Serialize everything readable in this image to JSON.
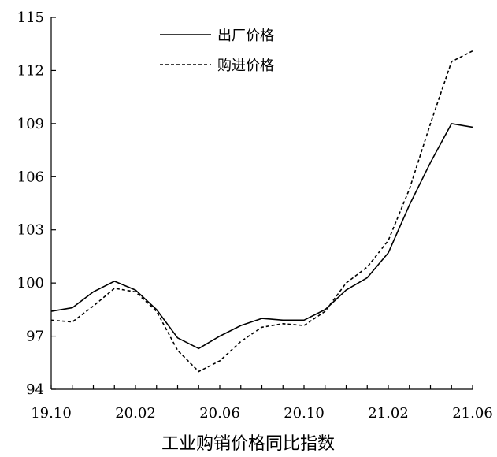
{
  "chart_data": {
    "type": "line",
    "title": "工业购销价格同比指数",
    "xlabel": "",
    "ylabel": "",
    "ylim": [
      94,
      115
    ],
    "yticks": [
      94,
      97,
      100,
      103,
      106,
      109,
      112,
      115
    ],
    "ytick_labels": [
      "94",
      "97",
      "100",
      "103",
      "106",
      "109",
      "112",
      "115"
    ],
    "x": [
      "19.10",
      "19.11",
      "19.12",
      "20.01",
      "20.02",
      "20.03",
      "20.04",
      "20.05",
      "20.06",
      "20.07",
      "20.08",
      "20.09",
      "20.10",
      "20.11",
      "20.12",
      "21.01",
      "21.02",
      "21.03",
      "21.04",
      "21.05",
      "21.06"
    ],
    "xtick_labels": [
      "19.10",
      "20.02",
      "20.06",
      "20.10",
      "21.02",
      "21.06"
    ],
    "xtick_label_indices": [
      0,
      4,
      8,
      12,
      16,
      20
    ],
    "grid": false,
    "legend_position": "top-left",
    "series": [
      {
        "name": "出厂价格",
        "style": "solid",
        "color": "#000000",
        "values": [
          98.4,
          98.6,
          99.5,
          100.1,
          99.6,
          98.5,
          96.9,
          96.3,
          97.0,
          97.6,
          98.0,
          97.9,
          97.9,
          98.5,
          99.6,
          100.3,
          101.7,
          104.4,
          106.8,
          109.0,
          108.8
        ]
      },
      {
        "name": "购进价格",
        "style": "dashed",
        "color": "#000000",
        "values": [
          97.9,
          97.8,
          98.7,
          99.7,
          99.5,
          98.4,
          96.2,
          95.0,
          95.6,
          96.7,
          97.5,
          97.7,
          97.6,
          98.4,
          100.0,
          100.9,
          102.4,
          105.3,
          109.0,
          112.5,
          113.1
        ]
      }
    ]
  }
}
